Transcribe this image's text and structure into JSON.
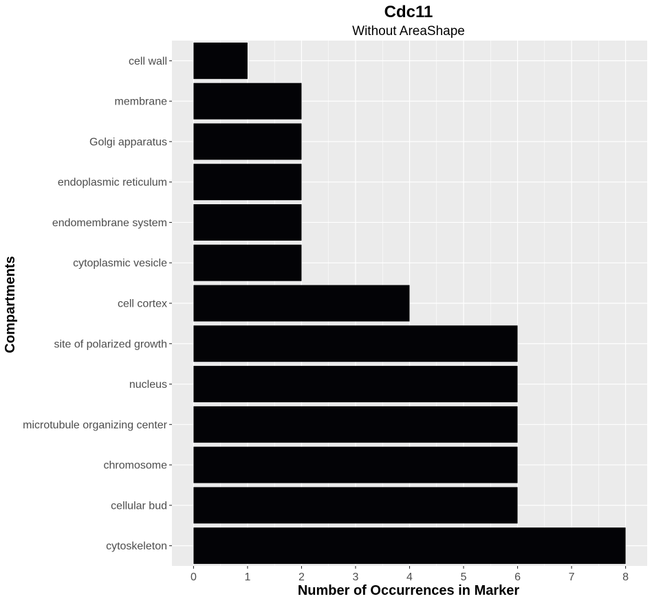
{
  "chart_data": {
    "type": "bar",
    "orientation": "horizontal",
    "title": "Cdc11",
    "subtitle": "Without AreaShape",
    "xlabel": "Number of Occurrences in Marker",
    "ylabel": "Compartments",
    "categories": [
      "cell wall",
      "membrane",
      "Golgi apparatus",
      "endoplasmic reticulum",
      "endomembrane system",
      "cytoplasmic vesicle",
      "cell cortex",
      "site of polarized growth",
      "nucleus",
      "microtubule organizing center",
      "chromosome",
      "cellular bud",
      "cytoskeleton"
    ],
    "values": [
      1,
      2,
      2,
      2,
      2,
      2,
      4,
      6,
      6,
      6,
      6,
      6,
      8
    ],
    "xlim": [
      -0.4,
      8.4
    ],
    "x_ticks": [
      "0",
      "1",
      "2",
      "3",
      "4",
      "5",
      "6",
      "7",
      "8"
    ],
    "grid": true,
    "legend": "none",
    "colors": {
      "bar": "#030306",
      "panel_background": "#ebebeb",
      "grid": "#ffffff",
      "tick_text": "#4d4d4d"
    }
  }
}
